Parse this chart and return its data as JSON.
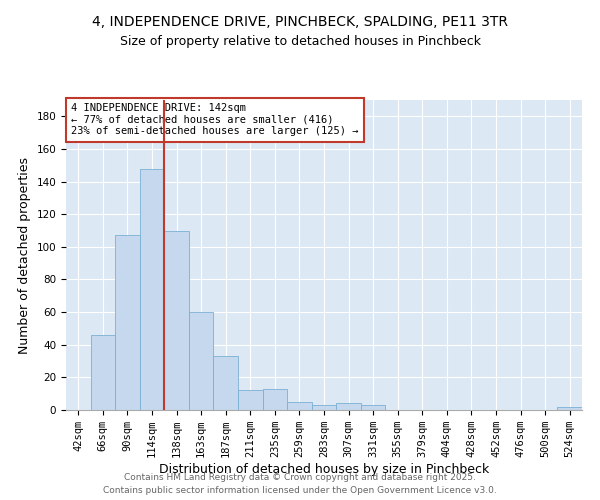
{
  "title_line1": "4, INDEPENDENCE DRIVE, PINCHBECK, SPALDING, PE11 3TR",
  "title_line2": "Size of property relative to detached houses in Pinchbeck",
  "xlabel": "Distribution of detached houses by size in Pinchbeck",
  "ylabel": "Number of detached properties",
  "categories": [
    "42sqm",
    "66sqm",
    "90sqm",
    "114sqm",
    "138sqm",
    "163sqm",
    "187sqm",
    "211sqm",
    "235sqm",
    "259sqm",
    "283sqm",
    "307sqm",
    "331sqm",
    "355sqm",
    "379sqm",
    "404sqm",
    "428sqm",
    "452sqm",
    "476sqm",
    "500sqm",
    "524sqm"
  ],
  "values": [
    0,
    46,
    107,
    148,
    110,
    60,
    33,
    12,
    13,
    5,
    3,
    4,
    3,
    0,
    0,
    0,
    0,
    0,
    0,
    0,
    2
  ],
  "bar_color": "#c5d8ed",
  "bar_edge_color": "#7ab0d4",
  "vline_x_index": 4,
  "vline_color": "#c0392b",
  "annotation_title": "4 INDEPENDENCE DRIVE: 142sqm",
  "annotation_line2": "← 77% of detached houses are smaller (416)",
  "annotation_line3": "23% of semi-detached houses are larger (125) →",
  "annotation_box_color": "#ffffff",
  "annotation_box_edge": "#c0392b",
  "ylim": [
    0,
    190
  ],
  "yticks": [
    0,
    20,
    40,
    60,
    80,
    100,
    120,
    140,
    160,
    180
  ],
  "bg_color": "#dce9f5",
  "footer_line1": "Contains HM Land Registry data © Crown copyright and database right 2025.",
  "footer_line2": "Contains public sector information licensed under the Open Government Licence v3.0.",
  "title_fontsize": 10,
  "subtitle_fontsize": 9,
  "axis_label_fontsize": 9,
  "tick_fontsize": 7.5,
  "annotation_fontsize": 7.5,
  "footer_fontsize": 6.5
}
